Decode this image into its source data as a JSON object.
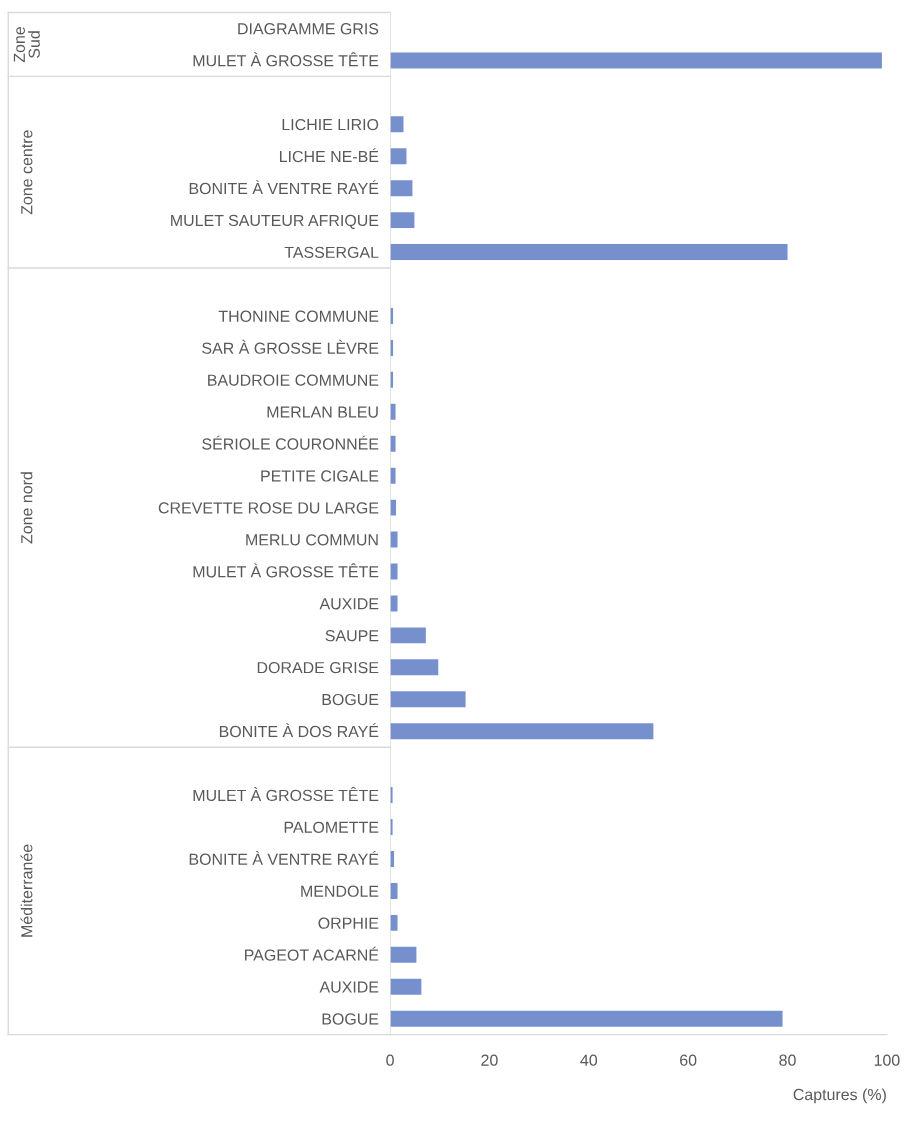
{
  "chart_data": {
    "type": "bar",
    "orientation": "horizontal",
    "xlabel": "Captures (%)",
    "categories": [
      "DIAGRAMME GRIS",
      "MULET À GROSSE TÊTE",
      null,
      "LICHIE LIRIO",
      "LICHE NE-BÉ",
      "BONITE À VENTRE RAYÉ",
      "MULET SAUTEUR AFRIQUE",
      "TASSERGAL",
      null,
      "THONINE COMMUNE",
      "SAR À GROSSE LÈVRE",
      "BAUDROIE COMMUNE",
      "MERLAN BLEU",
      "SÉRIOLE COURONNÉE",
      "PETITE CIGALE",
      "CREVETTE ROSE DU LARGE",
      "MERLU COMMUN",
      "MULET À GROSSE TÊTE",
      "AUXIDE",
      "SAUPE",
      "DORADE GRISE",
      "BOGUE",
      "BONITE À DOS RAYÉ",
      null,
      "MULET À GROSSE TÊTE",
      "PALOMETTE",
      "BONITE À VENTRE RAYÉ",
      "MENDOLE",
      "ORPHIE",
      "PAGEOT ACARNÉ",
      "AUXIDE",
      "BOGUE"
    ],
    "values": [
      null,
      99,
      null,
      2.7,
      3.3,
      4.5,
      4.9,
      80,
      null,
      0.6,
      0.6,
      0.6,
      1.1,
      1.1,
      1.1,
      1.2,
      1.5,
      1.5,
      1.5,
      7.2,
      9.7,
      15.2,
      53,
      null,
      0.5,
      0.5,
      0.8,
      1.5,
      1.5,
      5.3,
      6.3,
      79
    ],
    "color": "#7590cc",
    "xlim": [
      0,
      100
    ],
    "xticks": [
      0,
      20,
      40,
      60,
      80,
      100
    ],
    "annotations": [
      "Zone Sud",
      "Zone centre",
      "Zone nord",
      "Méditerranée"
    ],
    "grid": false
  }
}
